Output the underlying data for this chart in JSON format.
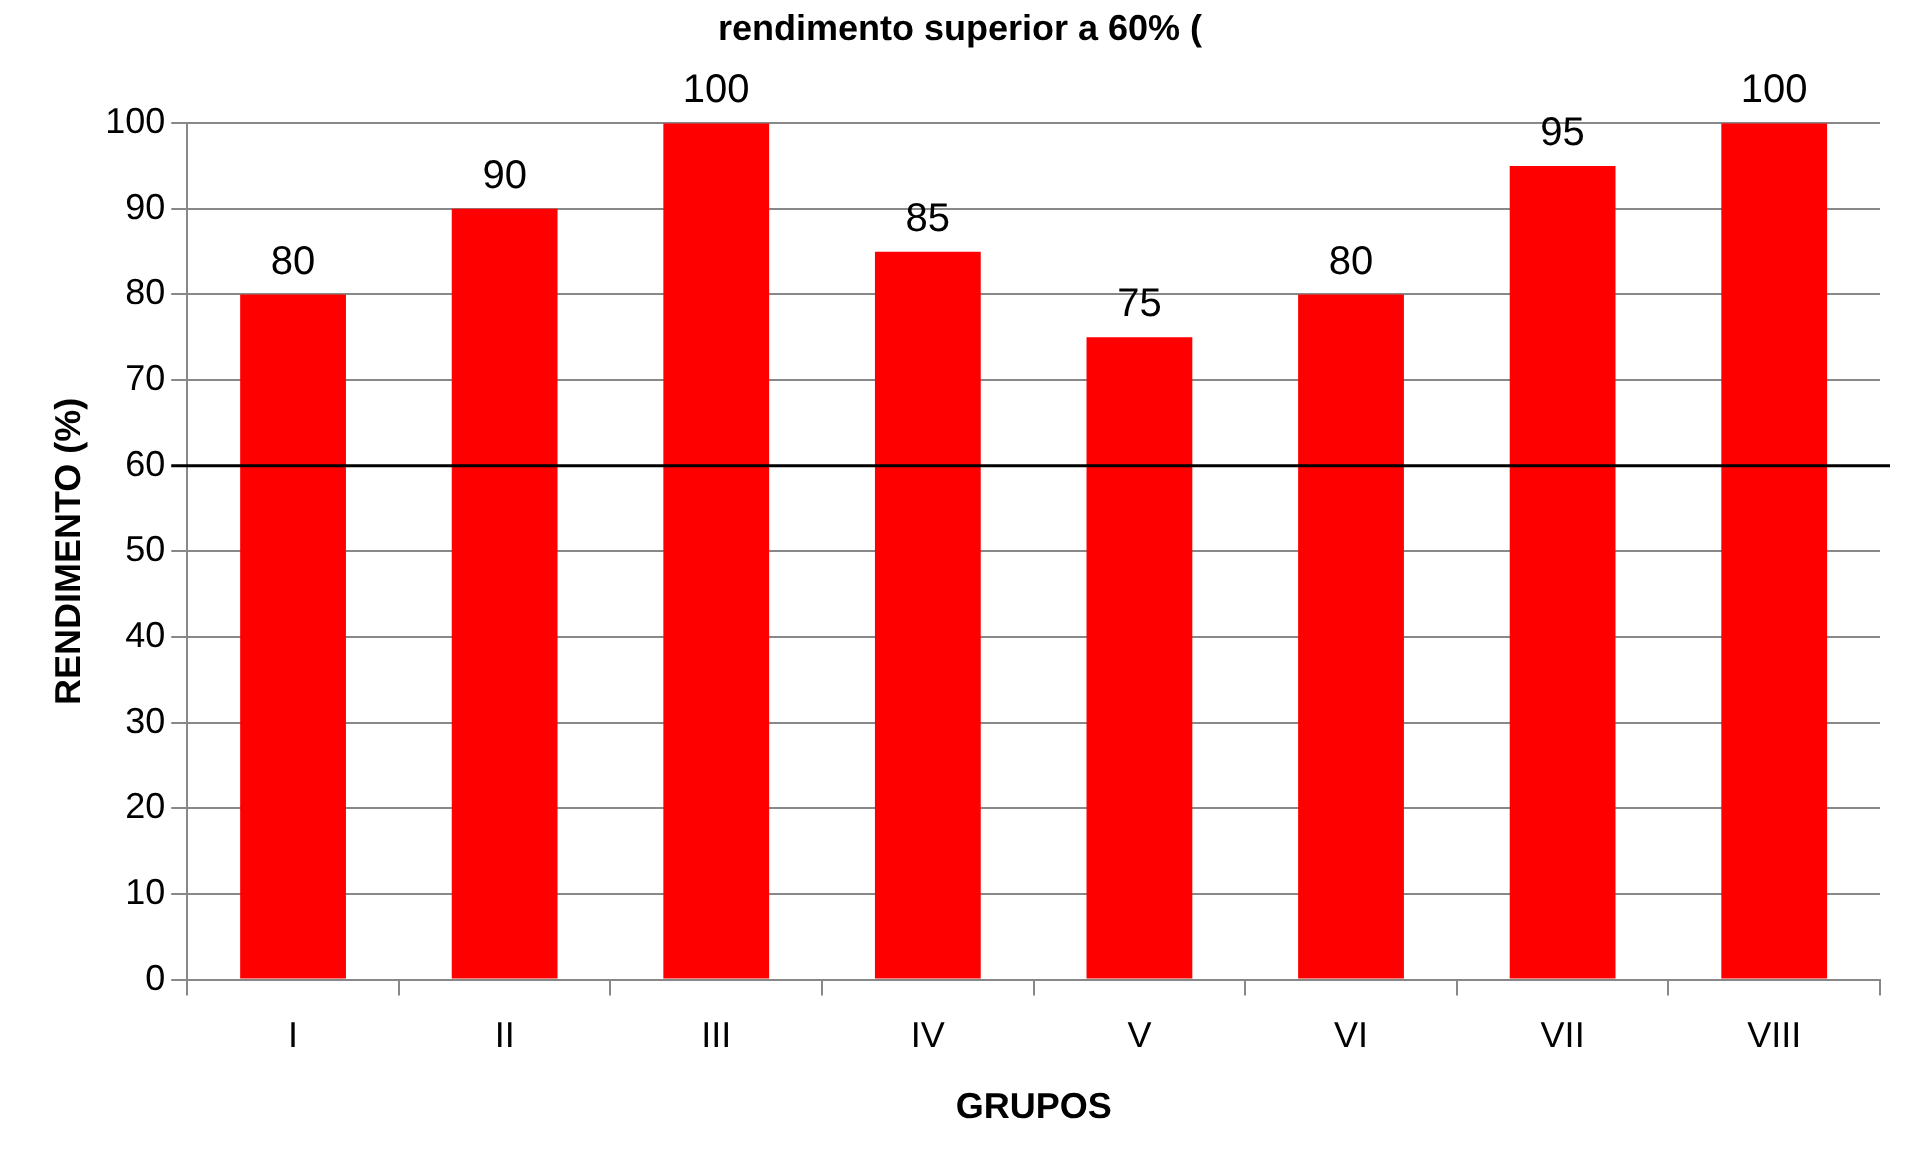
{
  "chart_data": {
    "type": "bar",
    "title": "rendimento superior a 60% (",
    "xlabel": "GRUPOS",
    "ylabel": "RENDIMENTO (%)",
    "categories": [
      "I",
      "II",
      "III",
      "IV",
      "V",
      "VI",
      "VII",
      "VIII"
    ],
    "values": [
      80,
      90,
      100,
      85,
      75,
      80,
      95,
      100
    ],
    "color": "#ff0000",
    "ylim": [
      0,
      100
    ],
    "yticks": [
      0,
      10,
      20,
      30,
      40,
      50,
      60,
      70,
      80,
      90,
      100
    ],
    "grid": "y",
    "legend": false,
    "data_labels": true,
    "ref_lines": [
      {
        "axis": "y",
        "value": 60,
        "color": "#000000"
      }
    ]
  }
}
